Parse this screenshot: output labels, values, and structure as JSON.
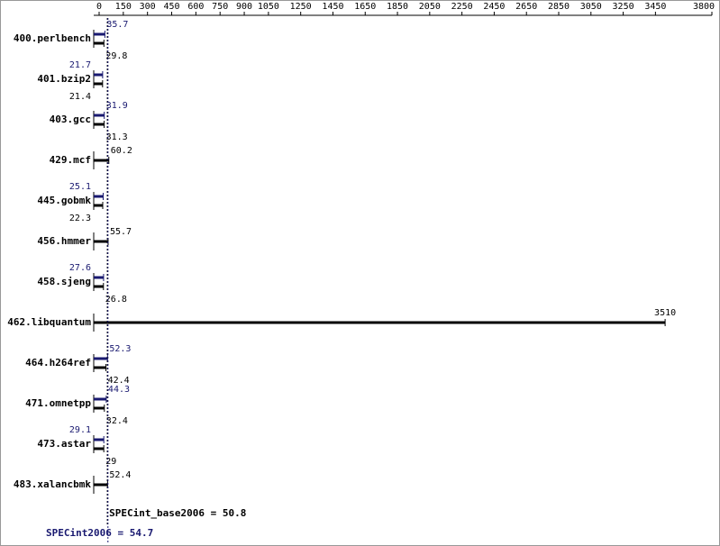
{
  "chart_data": {
    "type": "bar",
    "categories": [
      "400.perlbench",
      "401.bzip2",
      "403.gcc",
      "429.mcf",
      "445.gobmk",
      "456.hmmer",
      "458.sjeng",
      "462.libquantum",
      "464.h264ref",
      "471.omnetpp",
      "473.astar",
      "483.xalancbmk"
    ],
    "series": [
      {
        "color": "#191970",
        "values": [
          35.7,
          21.7,
          31.9,
          null,
          25.1,
          null,
          27.6,
          null,
          52.3,
          44.3,
          29.1,
          null
        ]
      },
      {
        "color": "#000000",
        "values": [
          29.8,
          21.4,
          31.3,
          60.2,
          22.3,
          55.7,
          26.8,
          3510,
          42.4,
          32.4,
          29.0,
          52.4
        ]
      }
    ],
    "xlim": [
      0,
      3800
    ],
    "xticks": [
      0,
      150,
      300,
      450,
      600,
      750,
      900,
      1050,
      1250,
      1450,
      1650,
      1850,
      2050,
      2250,
      2450,
      2650,
      2850,
      3050,
      3250,
      3450,
      3800
    ],
    "means": [
      {
        "label": "SPECint_base2006 = 50.8",
        "value": 50.8,
        "color": "#000000"
      },
      {
        "label": "SPECint2006 = 54.7",
        "value": 54.7,
        "color": "#191970"
      }
    ]
  }
}
